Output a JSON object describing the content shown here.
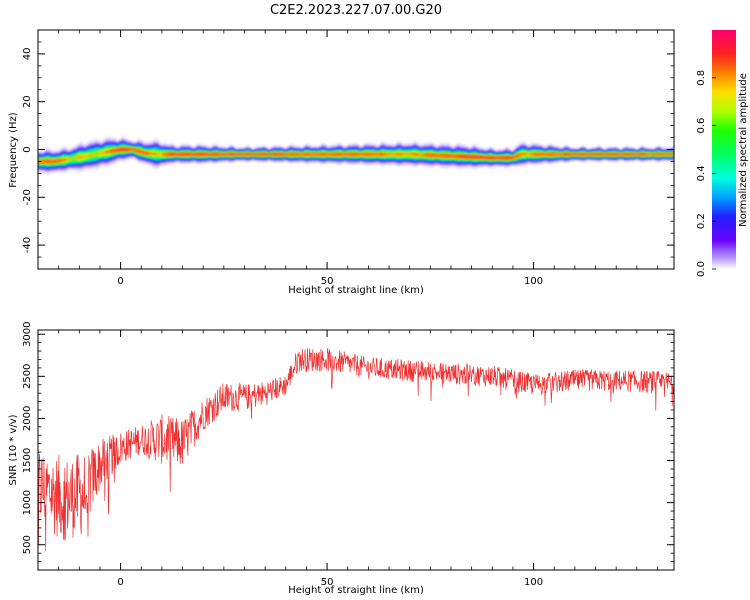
{
  "title": "C2E2.2023.227.07.00.G20",
  "chart_data": [
    {
      "type": "heatmap",
      "xlabel": "Height of straight line (km)",
      "ylabel": "Frequency (Hz)",
      "xlim": [
        -20,
        134
      ],
      "ylim": [
        -50,
        50
      ],
      "xticks": [
        0,
        50,
        100
      ],
      "yticks": [
        -40,
        -20,
        0,
        20,
        40
      ],
      "colorbar": {
        "label": "Normalized spectral amplitude",
        "range": [
          0,
          1
        ],
        "ticks": [
          0.0,
          0.2,
          0.4,
          0.6,
          0.8
        ],
        "colormap": [
          "#6a00a8",
          "#3b00ff",
          "#0050ff",
          "#00c0ff",
          "#00ff90",
          "#00ff00",
          "#c8ff00",
          "#ffe000",
          "#ff6a00",
          "#ff1a3c",
          "#ff0080"
        ]
      },
      "ridge": {
        "x": [
          -20,
          -16,
          -12,
          -9,
          -6,
          -3,
          0,
          3,
          6,
          9,
          12,
          20,
          30,
          50,
          70,
          84,
          90,
          95,
          97,
          110,
          120,
          134
        ],
        "y": [
          -5,
          -5,
          -4,
          -3,
          -2,
          -1,
          0,
          0,
          -1.5,
          -2,
          -2,
          -2,
          -2,
          -2,
          -2,
          -3,
          -3.5,
          -3.5,
          -2,
          -2,
          -2,
          -2
        ],
        "width": [
          5,
          5,
          5,
          6,
          6,
          6,
          5,
          4,
          5,
          6,
          4,
          4,
          3,
          4,
          5,
          5,
          4,
          4,
          5,
          3,
          3,
          3
        ],
        "amplitude": [
          0.8,
          0.85,
          0.6,
          0.65,
          0.6,
          0.7,
          0.95,
          0.85,
          0.8,
          0.6,
          0.9,
          0.95,
          0.9,
          0.85,
          0.7,
          0.9,
          0.95,
          0.9,
          0.7,
          0.92,
          0.9,
          0.85
        ]
      }
    },
    {
      "type": "line",
      "xlabel": "Height of straight line (km)",
      "ylabel": "SNR (10 * v/v)",
      "xlim": [
        -20,
        134
      ],
      "ylim": [
        200,
        3050
      ],
      "xticks": [
        0,
        50,
        100
      ],
      "yticks": [
        500,
        1000,
        1500,
        2000,
        2500,
        3000
      ],
      "color": "#f03030",
      "trend": {
        "x": [
          -20,
          -14,
          -9,
          -5,
          0,
          5,
          10,
          15,
          20,
          25,
          30,
          35,
          40,
          43,
          50,
          60,
          75,
          90,
          100,
          110,
          120,
          134
        ],
        "y": [
          1200,
          1050,
          1100,
          1450,
          1650,
          1750,
          1750,
          1700,
          2050,
          2250,
          2250,
          2300,
          2400,
          2700,
          2700,
          2600,
          2550,
          2500,
          2400,
          2450,
          2450,
          2420
        ],
        "noise": [
          500,
          500,
          500,
          300,
          200,
          180,
          300,
          300,
          200,
          180,
          160,
          150,
          130,
          150,
          140,
          130,
          130,
          130,
          130,
          130,
          130,
          140
        ]
      }
    }
  ]
}
